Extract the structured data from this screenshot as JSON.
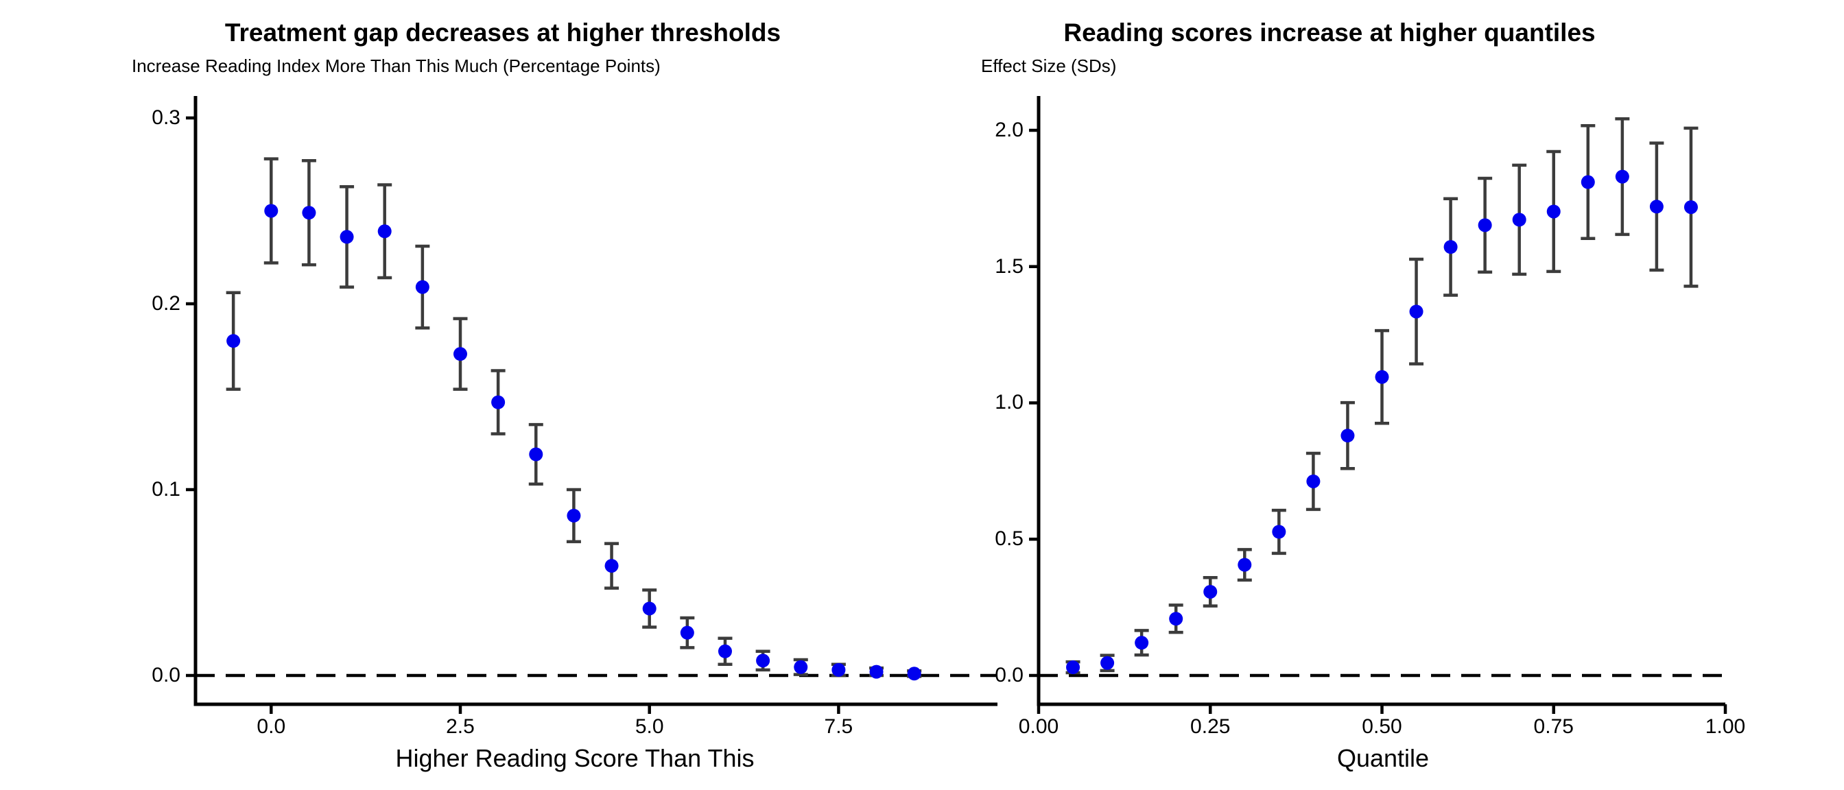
{
  "style": {
    "background": "#FFFFFF",
    "point_color": "#0000EE",
    "errorbar_color": "#3C3C3C",
    "axis_color": "#000000",
    "text_color": "#000000"
  },
  "chart_data": [
    {
      "type": "scatter",
      "title": "Treatment gap decreases at higher thresholds",
      "ylabel": "Increase Reading Index More Than This Much (Percentage Points)",
      "xlabel": "Higher Reading Score Than This",
      "legend": "none",
      "grid": false,
      "zero_reference_line": 0.0,
      "xlim": [
        -1.0,
        9.6
      ],
      "ylim": [
        -0.0155,
        0.3118
      ],
      "x_ticks": [
        0.0,
        2.5,
        5.0,
        7.5
      ],
      "x_tick_labels": [
        "0.0",
        "2.5",
        "5.0",
        "7.5"
      ],
      "y_ticks": [
        0.0,
        0.1,
        0.2,
        0.3
      ],
      "y_tick_labels": [
        "0.0",
        "0.1",
        "0.2",
        "0.3"
      ],
      "points": [
        {
          "x": -0.5,
          "y": 0.18,
          "err": 0.026
        },
        {
          "x": 0.0,
          "y": 0.25,
          "err": 0.028
        },
        {
          "x": 0.5,
          "y": 0.249,
          "err": 0.028
        },
        {
          "x": 1.0,
          "y": 0.236,
          "err": 0.027
        },
        {
          "x": 1.5,
          "y": 0.239,
          "err": 0.025
        },
        {
          "x": 2.0,
          "y": 0.209,
          "err": 0.022
        },
        {
          "x": 2.5,
          "y": 0.173,
          "err": 0.019
        },
        {
          "x": 3.0,
          "y": 0.147,
          "err": 0.017
        },
        {
          "x": 3.5,
          "y": 0.119,
          "err": 0.016
        },
        {
          "x": 4.0,
          "y": 0.086,
          "err": 0.014
        },
        {
          "x": 4.5,
          "y": 0.059,
          "err": 0.012
        },
        {
          "x": 5.0,
          "y": 0.036,
          "err": 0.01
        },
        {
          "x": 5.5,
          "y": 0.023,
          "err": 0.008
        },
        {
          "x": 6.0,
          "y": 0.013,
          "err": 0.007
        },
        {
          "x": 6.5,
          "y": 0.008,
          "err": 0.005
        },
        {
          "x": 7.0,
          "y": 0.0045,
          "err": 0.004
        },
        {
          "x": 7.5,
          "y": 0.003,
          "err": 0.003
        },
        {
          "x": 8.0,
          "y": 0.002,
          "err": 0.002
        },
        {
          "x": 8.5,
          "y": 0.001,
          "err": 0.0015
        }
      ]
    },
    {
      "type": "scatter",
      "title": "Reading scores increase at higher quantiles",
      "ylabel": "Effect Size (SDs)",
      "xlabel": "Quantile",
      "legend": "none",
      "grid": false,
      "zero_reference_line": 0.0,
      "xlim": [
        0.0,
        1.0
      ],
      "ylim": [
        -0.1057,
        2.1258
      ],
      "x_ticks": [
        0.0,
        0.25,
        0.5,
        0.75,
        1.0
      ],
      "x_tick_labels": [
        "0.00",
        "0.25",
        "0.50",
        "0.75",
        "1.00"
      ],
      "y_ticks": [
        0.0,
        0.5,
        1.0,
        1.5,
        2.0
      ],
      "y_tick_labels": [
        "0.0",
        "0.5",
        "1.0",
        "1.5",
        "2.0"
      ],
      "points": [
        {
          "x": 0.05,
          "y": 0.03,
          "err": 0.02
        },
        {
          "x": 0.1,
          "y": 0.046,
          "err": 0.028
        },
        {
          "x": 0.15,
          "y": 0.12,
          "err": 0.045
        },
        {
          "x": 0.2,
          "y": 0.208,
          "err": 0.05
        },
        {
          "x": 0.25,
          "y": 0.307,
          "err": 0.052
        },
        {
          "x": 0.3,
          "y": 0.406,
          "err": 0.056
        },
        {
          "x": 0.35,
          "y": 0.527,
          "err": 0.079
        },
        {
          "x": 0.4,
          "y": 0.712,
          "err": 0.103
        },
        {
          "x": 0.45,
          "y": 0.88,
          "err": 0.121
        },
        {
          "x": 0.5,
          "y": 1.095,
          "err": 0.17
        },
        {
          "x": 0.55,
          "y": 1.335,
          "err": 0.192
        },
        {
          "x": 0.6,
          "y": 1.572,
          "err": 0.177
        },
        {
          "x": 0.65,
          "y": 1.652,
          "err": 0.172
        },
        {
          "x": 0.7,
          "y": 1.672,
          "err": 0.2
        },
        {
          "x": 0.75,
          "y": 1.702,
          "err": 0.22
        },
        {
          "x": 0.8,
          "y": 1.81,
          "err": 0.207
        },
        {
          "x": 0.85,
          "y": 1.83,
          "err": 0.212
        },
        {
          "x": 0.9,
          "y": 1.72,
          "err": 0.233
        },
        {
          "x": 0.95,
          "y": 1.718,
          "err": 0.29
        }
      ]
    }
  ]
}
